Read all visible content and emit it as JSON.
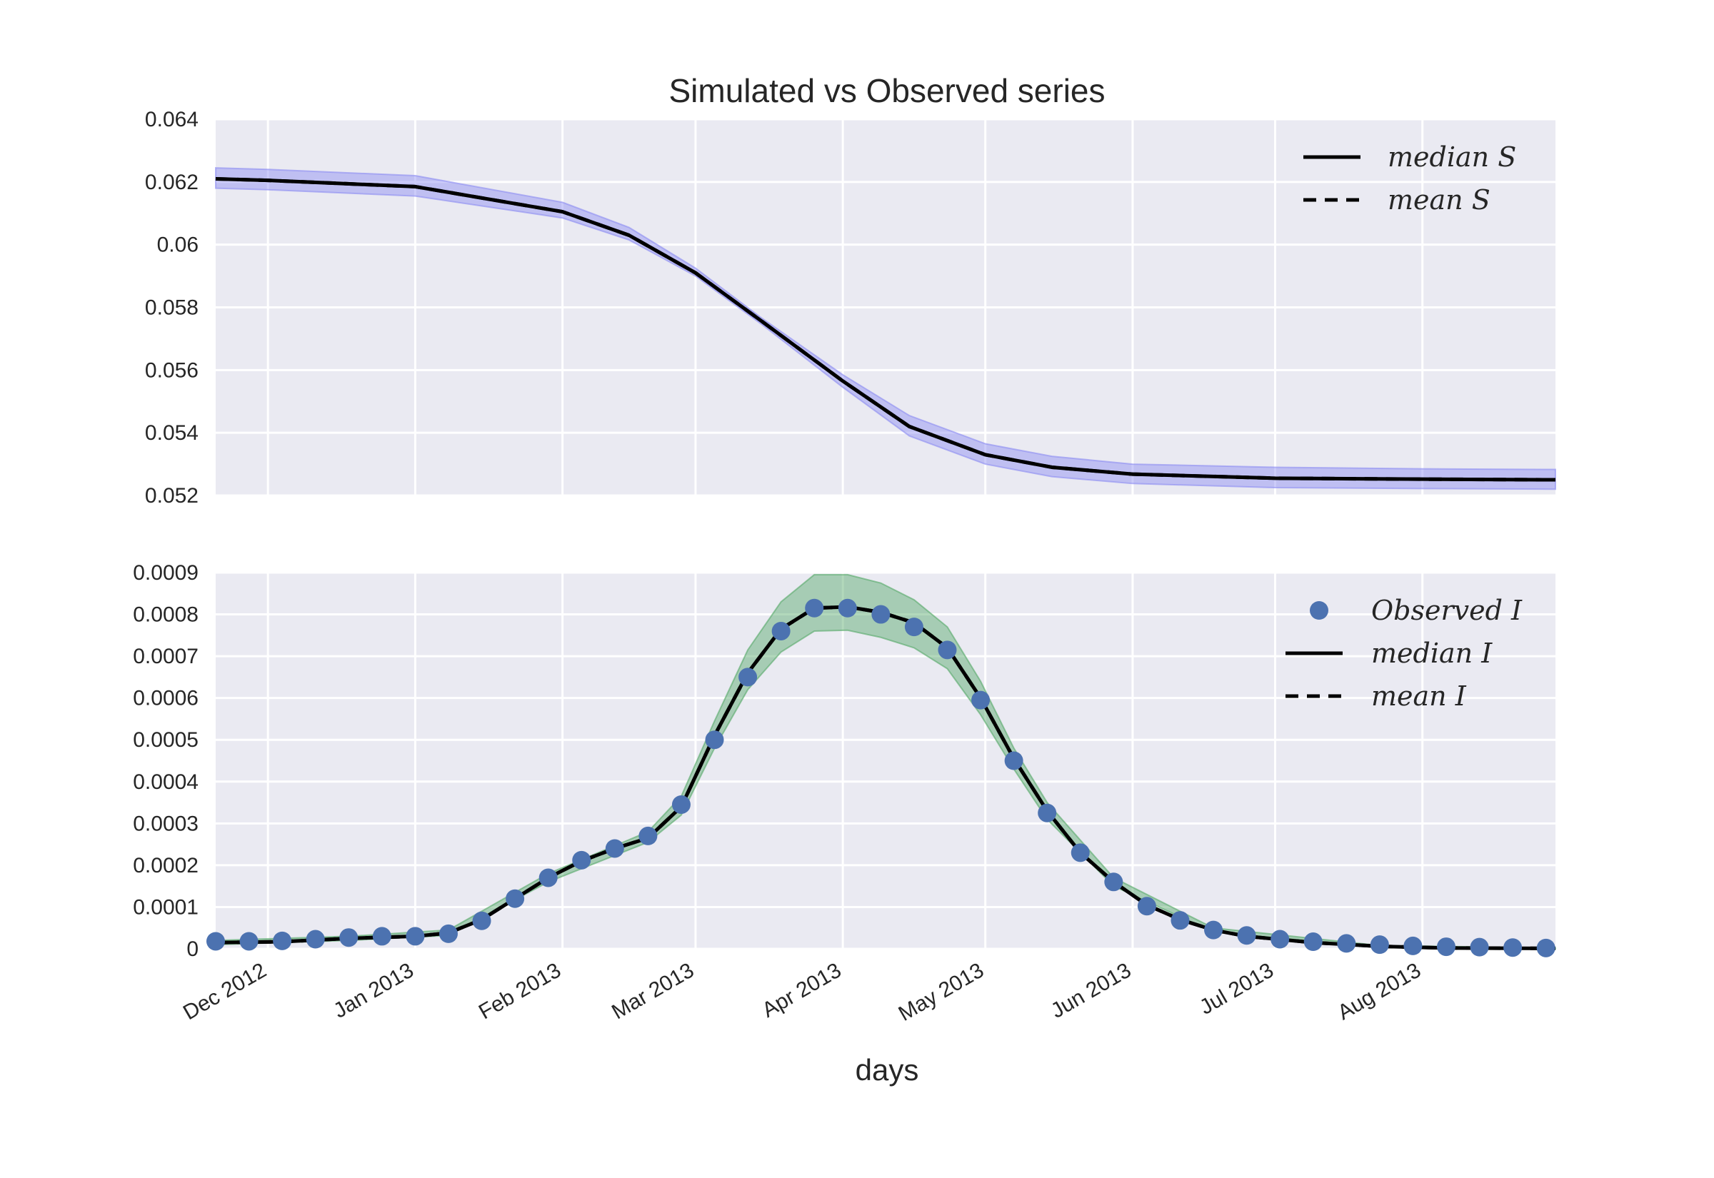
{
  "chart_data": [
    {
      "type": "line",
      "title": "Simulated vs Observed series",
      "xlabel": "",
      "ylabel": "",
      "ylim": [
        0.052,
        0.064
      ],
      "yticks": [
        "0.052",
        "0.054",
        "0.056",
        "0.058",
        "0.06",
        "0.062",
        "0.064"
      ],
      "grid": true,
      "legend_position": "top-right",
      "x_dates": [
        "2012-11-20",
        "2012-12-01",
        "2013-01-01",
        "2013-02-01",
        "2013-02-15",
        "2013-03-01",
        "2013-03-15",
        "2013-04-01",
        "2013-04-15",
        "2013-05-01",
        "2013-05-15",
        "2013-06-01",
        "2013-07-01",
        "2013-08-01",
        "2013-08-29"
      ],
      "series": [
        {
          "name": "median S",
          "style": "solid",
          "color": "#000000",
          "values": [
            0.0621,
            0.06205,
            0.06185,
            0.06105,
            0.0603,
            0.0591,
            0.05755,
            0.05565,
            0.0542,
            0.0533,
            0.0529,
            0.05268,
            0.05255,
            0.05252,
            0.0525
          ]
        },
        {
          "name": "mean S",
          "style": "dashed",
          "color": "#000000",
          "values": [
            0.0621,
            0.06205,
            0.06185,
            0.06105,
            0.0603,
            0.0591,
            0.05755,
            0.05565,
            0.0542,
            0.0533,
            0.0529,
            0.05268,
            0.05255,
            0.05252,
            0.0525
          ]
        }
      ],
      "band": {
        "color": "#8c8cf2",
        "lower": [
          0.0618,
          0.06175,
          0.06155,
          0.06085,
          0.06015,
          0.059,
          0.05745,
          0.05545,
          0.0539,
          0.053,
          0.0526,
          0.05238,
          0.05225,
          0.05222,
          0.0522
        ],
        "upper": [
          0.06245,
          0.0624,
          0.0622,
          0.06135,
          0.06055,
          0.05925,
          0.05765,
          0.05585,
          0.05455,
          0.05365,
          0.05325,
          0.053,
          0.0529,
          0.05285,
          0.05283
        ]
      }
    },
    {
      "type": "line",
      "title": "",
      "xlabel": "days",
      "ylabel": "",
      "ylim": [
        0,
        0.0009
      ],
      "yticks": [
        "0",
        "0.0001",
        "0.0002",
        "0.0003",
        "0.0004",
        "0.0005",
        "0.0006",
        "0.0007",
        "0.0008",
        "0.0009"
      ],
      "xticks": [
        "Dec 2012",
        "Jan 2013",
        "Feb 2013",
        "Mar 2013",
        "Apr 2013",
        "May 2013",
        "Jun 2013",
        "Jul 2013",
        "Aug 2013"
      ],
      "xtick_dates": [
        "2012-12-01",
        "2013-01-01",
        "2013-02-01",
        "2013-03-01",
        "2013-04-01",
        "2013-05-01",
        "2013-06-01",
        "2013-07-01",
        "2013-08-01"
      ],
      "x_range": [
        "2012-11-20",
        "2013-08-29"
      ],
      "grid": true,
      "legend_position": "top-right",
      "observed": {
        "name": "Observed I",
        "color": "#4c72b0",
        "x": [
          "2012-11-20",
          "2012-11-27",
          "2012-12-04",
          "2012-12-11",
          "2012-12-18",
          "2012-12-25",
          "2013-01-01",
          "2013-01-08",
          "2013-01-15",
          "2013-01-22",
          "2013-01-29",
          "2013-02-05",
          "2013-02-12",
          "2013-02-19",
          "2013-02-26",
          "2013-03-05",
          "2013-03-12",
          "2013-03-19",
          "2013-03-26",
          "2013-04-02",
          "2013-04-09",
          "2013-04-16",
          "2013-04-23",
          "2013-04-30",
          "2013-05-07",
          "2013-05-14",
          "2013-05-21",
          "2013-05-28",
          "2013-06-04",
          "2013-06-11",
          "2013-06-18",
          "2013-06-25",
          "2013-07-02",
          "2013-07-09",
          "2013-07-16",
          "2013-07-23",
          "2013-07-30",
          "2013-08-06",
          "2013-08-13",
          "2013-08-20",
          "2013-08-27"
        ],
        "values": [
          1.8e-05,
          1.8e-05,
          1.9e-05,
          2.3e-05,
          2.7e-05,
          3e-05,
          3e-05,
          3.6e-05,
          6.7e-05,
          0.00012,
          0.00017,
          0.000212,
          0.00024,
          0.00027,
          0.000345,
          0.0005,
          0.00065,
          0.00076,
          0.000815,
          0.000815,
          0.0008,
          0.00077,
          0.000715,
          0.000595,
          0.00045,
          0.000325,
          0.00023,
          0.00016,
          0.000102,
          6.8e-05,
          4.5e-05,
          3.2e-05,
          2.3e-05,
          1.7e-05,
          1.3e-05,
          1e-05,
          7e-06,
          5e-06,
          4e-06,
          3e-06,
          2e-06
        ]
      },
      "series": [
        {
          "name": "median I",
          "style": "solid",
          "color": "#000000",
          "x": [
            "2012-11-20",
            "2012-12-04",
            "2012-12-18",
            "2013-01-01",
            "2013-01-08",
            "2013-01-15",
            "2013-01-22",
            "2013-01-29",
            "2013-02-05",
            "2013-02-12",
            "2013-02-19",
            "2013-02-26",
            "2013-03-05",
            "2013-03-12",
            "2013-03-19",
            "2013-03-26",
            "2013-04-02",
            "2013-04-09",
            "2013-04-16",
            "2013-04-23",
            "2013-04-30",
            "2013-05-07",
            "2013-05-14",
            "2013-05-21",
            "2013-05-28",
            "2013-06-04",
            "2013-06-11",
            "2013-06-18",
            "2013-06-25",
            "2013-07-09",
            "2013-07-23",
            "2013-08-06",
            "2013-08-29"
          ],
          "values": [
            1.5e-05,
            1.7e-05,
            2.5e-05,
            3e-05,
            3.8e-05,
            7e-05,
            0.00012,
            0.00017,
            0.00021,
            0.00024,
            0.000265,
            0.00034,
            0.00051,
            0.00066,
            0.000765,
            0.000815,
            0.000818,
            0.000805,
            0.00078,
            0.00072,
            0.0006,
            0.000455,
            0.00033,
            0.00023,
            0.00016,
            0.000105,
            7e-05,
            4.5e-05,
            3e-05,
            1.5e-05,
            6e-06,
            2e-06,
            1e-06
          ]
        },
        {
          "name": "mean I",
          "style": "dashed",
          "color": "#000000",
          "x": [
            "2012-11-20",
            "2012-12-04",
            "2012-12-18",
            "2013-01-01",
            "2013-01-08",
            "2013-01-15",
            "2013-01-22",
            "2013-01-29",
            "2013-02-05",
            "2013-02-12",
            "2013-02-19",
            "2013-02-26",
            "2013-03-05",
            "2013-03-12",
            "2013-03-19",
            "2013-03-26",
            "2013-04-02",
            "2013-04-09",
            "2013-04-16",
            "2013-04-23",
            "2013-04-30",
            "2013-05-07",
            "2013-05-14",
            "2013-05-21",
            "2013-05-28",
            "2013-06-04",
            "2013-06-11",
            "2013-06-18",
            "2013-06-25",
            "2013-07-09",
            "2013-07-23",
            "2013-08-06",
            "2013-08-29"
          ],
          "values": [
            1.5e-05,
            1.7e-05,
            2.5e-05,
            3e-05,
            3.8e-05,
            7e-05,
            0.00012,
            0.00017,
            0.00021,
            0.00024,
            0.000265,
            0.00034,
            0.00051,
            0.00066,
            0.000765,
            0.000815,
            0.000818,
            0.000805,
            0.00078,
            0.00072,
            0.0006,
            0.000455,
            0.00033,
            0.00023,
            0.00016,
            0.000105,
            7e-05,
            4.5e-05,
            3e-05,
            1.5e-05,
            6e-06,
            2e-06,
            1e-06
          ]
        }
      ],
      "band": {
        "color": "#55a868",
        "x": [
          "2012-11-20",
          "2012-12-18",
          "2013-01-08",
          "2013-01-29",
          "2013-02-19",
          "2013-02-26",
          "2013-03-05",
          "2013-03-12",
          "2013-03-19",
          "2013-03-26",
          "2013-04-02",
          "2013-04-09",
          "2013-04-16",
          "2013-04-23",
          "2013-04-30",
          "2013-05-07",
          "2013-05-14",
          "2013-05-28",
          "2013-06-18",
          "2013-07-23",
          "2013-08-29"
        ],
        "lower": [
          1e-05,
          2e-05,
          3.2e-05,
          0.00016,
          0.000255,
          0.00032,
          0.00048,
          0.00062,
          0.00071,
          0.00076,
          0.000762,
          0.000745,
          0.00072,
          0.00067,
          0.00056,
          0.00043,
          0.00031,
          0.00015,
          4e-05,
          4e-06,
          0.0
        ],
        "upper": [
          2e-05,
          3e-05,
          4.5e-05,
          0.00018,
          0.00028,
          0.000365,
          0.000545,
          0.000715,
          0.00083,
          0.000895,
          0.000895,
          0.000875,
          0.000835,
          0.00077,
          0.00064,
          0.00048,
          0.00035,
          0.00017,
          5e-05,
          8e-06,
          2e-06
        ]
      }
    }
  ]
}
